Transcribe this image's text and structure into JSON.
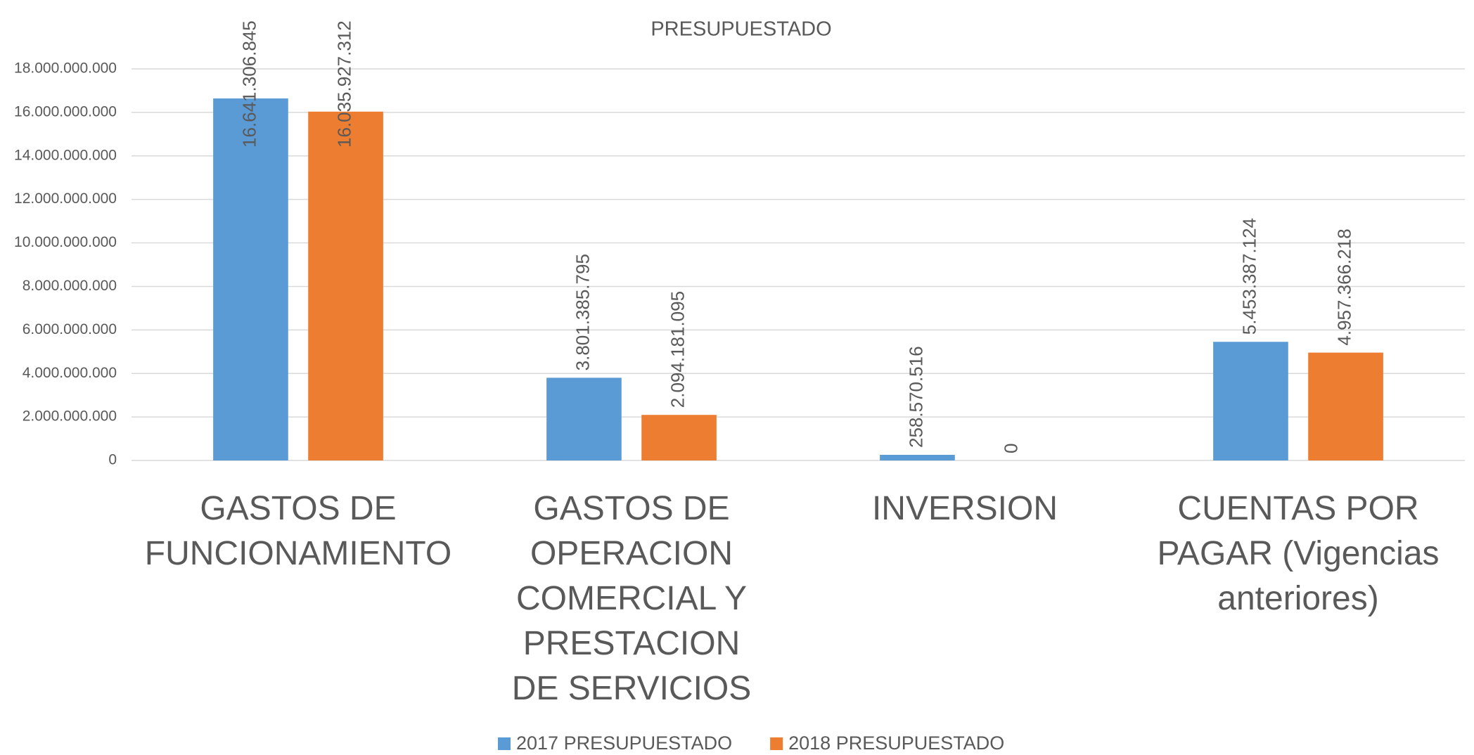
{
  "chart_data": {
    "type": "bar",
    "title": "PRESUPUESTADO",
    "categories": [
      "GASTOS DE FUNCIONAMIENTO",
      "GASTOS DE OPERACION COMERCIAL Y PRESTACION DE SERVICIOS",
      "INVERSION",
      "CUENTAS POR PAGAR (Vigencias anteriores)"
    ],
    "series": [
      {
        "name": "2017 PRESUPUESTADO",
        "color": "#5b9bd5",
        "values": [
          16641306845,
          3801385795,
          258570516,
          5453387124
        ],
        "value_labels": [
          "16.641.306.845",
          "3.801.385.795",
          "258.570.516",
          "5.453.387.124"
        ]
      },
      {
        "name": "2018 PRESUPUESTADO",
        "color": "#ed7d31",
        "values": [
          16035927312,
          2094181095,
          0,
          4957366218
        ],
        "value_labels": [
          "16.035.927.312",
          "2.094.181.095",
          "0",
          "4.957.366.218"
        ]
      }
    ],
    "ylim": [
      0,
      18000000000
    ],
    "yticks": [
      0,
      {
        "value": 2000000000,
        "label": "2.000.000.000"
      },
      {
        "value": 4000000000,
        "label": "4.000.000.000"
      },
      {
        "value": 6000000000,
        "label": "6.000.000.000"
      },
      {
        "value": 8000000000,
        "label": "8.000.000.000"
      },
      {
        "value": 10000000000,
        "label": "10.000.000.000"
      },
      {
        "value": 12000000000,
        "label": "12.000.000.000"
      },
      {
        "value": 14000000000,
        "label": "14.000.000.000"
      },
      {
        "value": 16000000000,
        "label": "16.000.000.000"
      },
      {
        "value": 18000000000,
        "label": "18.000.000.000"
      }
    ],
    "grid": true,
    "legend": "bottom"
  }
}
